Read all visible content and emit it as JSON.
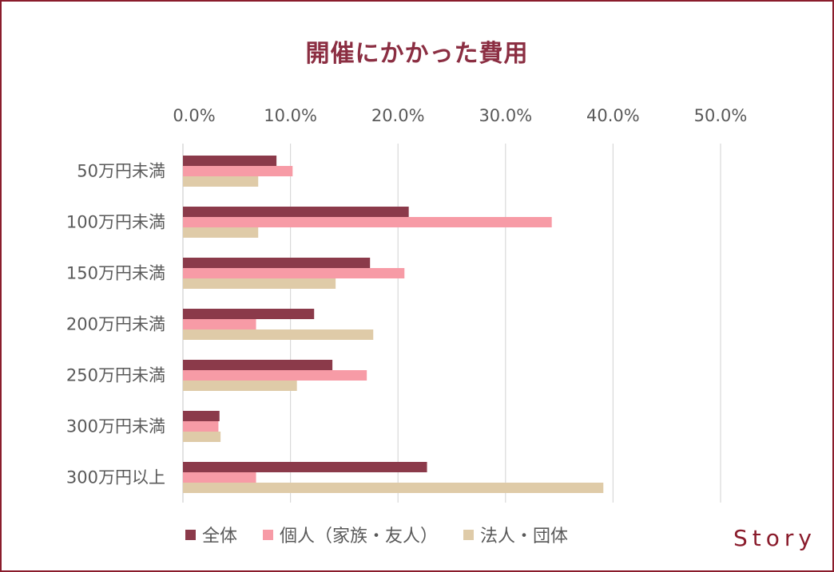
{
  "colors": {
    "frame": "#8a1c2c",
    "title": "#8b2e42",
    "text": "#595959",
    "grid": "#d9d9d9",
    "logo": "#8a1c2c"
  },
  "logo": {
    "text": "Story"
  },
  "chart_data": {
    "type": "bar",
    "orientation": "horizontal",
    "title": "開催にかかった費用",
    "xlabel": "",
    "ylabel": "",
    "xlim": [
      0,
      50
    ],
    "x_ticks": [
      "0.0%",
      "10.0%",
      "20.0%",
      "30.0%",
      "40.0%",
      "50.0%"
    ],
    "x_axis_position": "top",
    "grid": true,
    "legend_position": "bottom",
    "categories": [
      "50万円未満",
      "100万円未満",
      "150万円未満",
      "200万円未満",
      "250万円未満",
      "300万円未満",
      "300万円以上"
    ],
    "series": [
      {
        "name": "全体",
        "color": "#8b3a4a",
        "values": [
          8.7,
          21.0,
          17.4,
          12.2,
          13.9,
          3.4,
          22.7
        ]
      },
      {
        "name": "個人（家族・友人）",
        "color": "#f79ba6",
        "values": [
          10.2,
          34.3,
          20.6,
          6.8,
          17.1,
          3.3,
          6.8
        ]
      },
      {
        "name": "法人・団体",
        "color": "#dfcba8",
        "values": [
          7.0,
          7.0,
          14.2,
          17.7,
          10.6,
          3.5,
          39.1
        ]
      }
    ]
  }
}
